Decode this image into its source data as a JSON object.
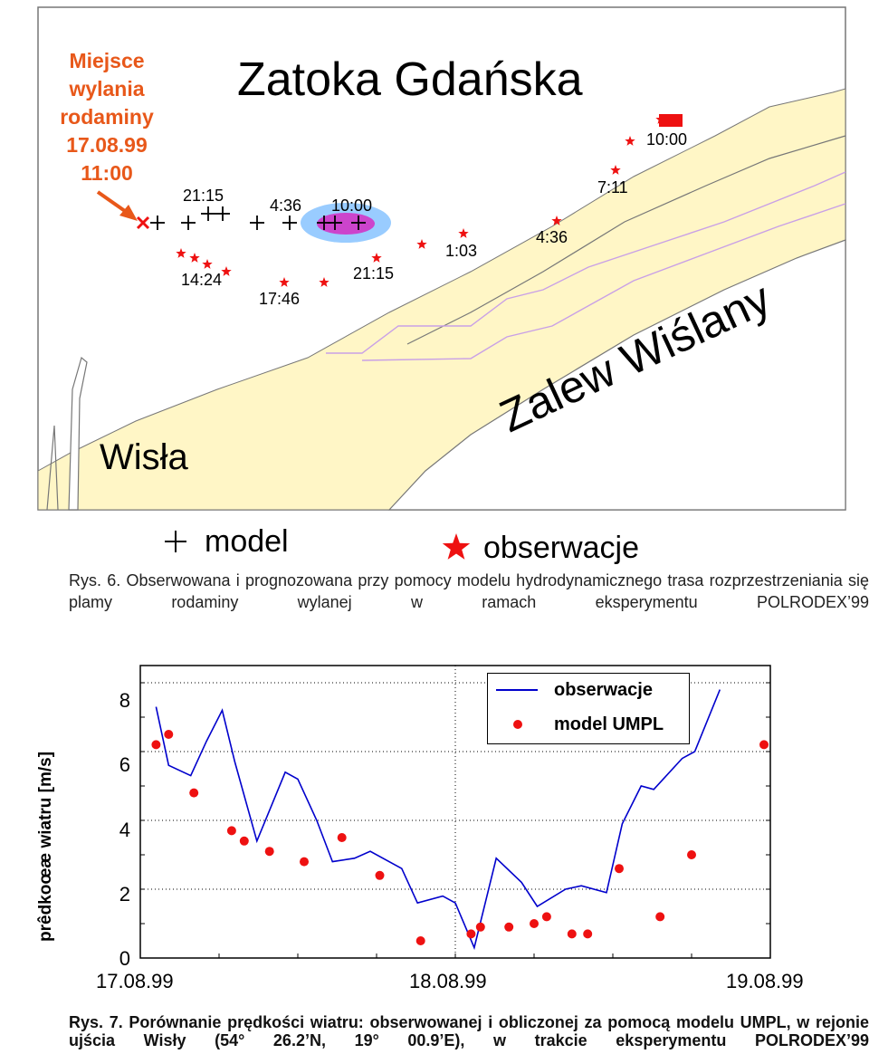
{
  "map": {
    "title": "Zatoka Gdańska",
    "lagoon_label": "Zalew Wiślany",
    "river_label": "Wisła",
    "spill_label_lines": [
      "Miejsce",
      "wylania",
      "rodaminy",
      "17.08.99",
      "11:00"
    ],
    "model_times": [
      "21:15",
      "4:36",
      "10:00"
    ],
    "observation_times": [
      "14:24",
      "17:46",
      "21:15",
      "1:03",
      "4:36",
      "7:11",
      "10:00"
    ],
    "legend": {
      "model": "model",
      "observations": "obserwacje"
    },
    "colors": {
      "land": "#fff6c6",
      "sea": "#ffffff",
      "plume_outer": "#99ccff",
      "plume_inner": "#cc44cc",
      "marker": "#ee1111",
      "spill_text": "#e8581a"
    },
    "icons": {
      "model_marker": "plus-icon",
      "observation_marker": "star-icon",
      "spill_marker": "cross-icon",
      "arrow": "arrow-icon"
    }
  },
  "captions": {
    "fig6": "Rys. 6. Obserwowana i prognozowana przy pomocy modelu hydrodynamicznego trasa rozprzestrzeniania się plamy rodaminy wylanej w ramach eksperymentu POLRODEX’99",
    "fig7": "Rys. 7. Porównanie prędkości wiatru: obserwowanej i obliczonej za pomocą modelu UMPL, w rejonie ujścia Wisły (54° 26.2’N, 19° 00.9’E), w trakcie eksperymentu POLRODEX’99"
  },
  "chart_data": {
    "type": "line",
    "title": "",
    "xlabel": "",
    "ylabel": "prêdkoœæ wiatru [m/s]",
    "x_tick_labels": [
      "17.08.99",
      "18.08.99",
      "19.08.99"
    ],
    "x_unit": "days from 17.08.99 00:00",
    "xlim": [
      0,
      2
    ],
    "ylim": [
      0,
      8.5
    ],
    "y_ticks": [
      0,
      2,
      4,
      6,
      8
    ],
    "grid": true,
    "legend_position": "top-right",
    "series": [
      {
        "name": "obserwacje",
        "kind": "line",
        "color": "#0000cc",
        "points": [
          [
            0.05,
            7.3
          ],
          [
            0.09,
            5.6
          ],
          [
            0.16,
            5.3
          ],
          [
            0.21,
            6.3
          ],
          [
            0.26,
            7.2
          ],
          [
            0.3,
            5.7
          ],
          [
            0.37,
            3.4
          ],
          [
            0.46,
            5.4
          ],
          [
            0.5,
            5.2
          ],
          [
            0.56,
            4.0
          ],
          [
            0.61,
            2.8
          ],
          [
            0.68,
            2.9
          ],
          [
            0.73,
            3.1
          ],
          [
            0.83,
            2.6
          ],
          [
            0.88,
            1.6
          ],
          [
            0.96,
            1.8
          ],
          [
            1.0,
            1.6
          ],
          [
            1.06,
            0.3
          ],
          [
            1.13,
            2.9
          ],
          [
            1.21,
            2.2
          ],
          [
            1.26,
            1.5
          ],
          [
            1.35,
            2.0
          ],
          [
            1.4,
            2.1
          ],
          [
            1.48,
            1.9
          ],
          [
            1.53,
            3.9
          ],
          [
            1.59,
            5.0
          ],
          [
            1.63,
            4.9
          ],
          [
            1.72,
            5.8
          ],
          [
            1.76,
            6.0
          ],
          [
            1.84,
            7.8
          ]
        ]
      },
      {
        "name": "model UMPL",
        "kind": "scatter",
        "color": "#ee1111",
        "points": [
          [
            0.05,
            6.2
          ],
          [
            0.09,
            6.5
          ],
          [
            0.17,
            4.8
          ],
          [
            0.29,
            3.7
          ],
          [
            0.33,
            3.4
          ],
          [
            0.41,
            3.1
          ],
          [
            0.52,
            2.8
          ],
          [
            0.64,
            3.5
          ],
          [
            0.76,
            2.4
          ],
          [
            0.89,
            0.5
          ],
          [
            1.05,
            0.7
          ],
          [
            1.08,
            0.9
          ],
          [
            1.17,
            0.9
          ],
          [
            1.25,
            1.0
          ],
          [
            1.29,
            1.2
          ],
          [
            1.37,
            0.7
          ],
          [
            1.42,
            0.7
          ],
          [
            1.52,
            2.6
          ],
          [
            1.65,
            1.2
          ],
          [
            1.75,
            3.0
          ],
          [
            1.98,
            6.2
          ]
        ]
      }
    ]
  }
}
